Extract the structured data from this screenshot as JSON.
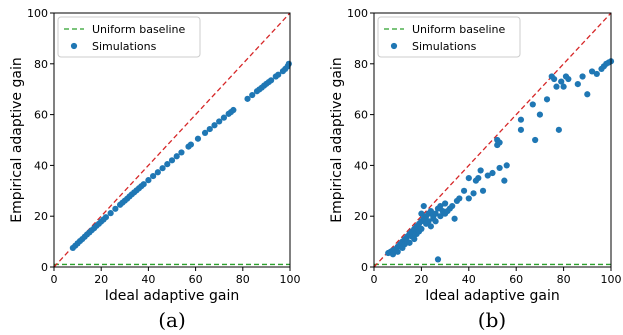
{
  "chart_data": [
    {
      "type": "scatter",
      "xlabel": "Ideal adaptive gain",
      "ylabel": "Empirical adaptive gain",
      "xlim": [
        0,
        100
      ],
      "ylim": [
        0,
        100
      ],
      "xticks": [
        0,
        20,
        40,
        60,
        80,
        100
      ],
      "yticks": [
        0,
        20,
        40,
        60,
        80,
        100
      ],
      "caption": "(a)",
      "legend": {
        "placement": "top-left",
        "entries": [
          "Uniform baseline",
          "Simulations"
        ]
      },
      "diagonal": {
        "style": "red-dashed",
        "from": [
          0,
          0
        ],
        "to": [
          100,
          100
        ]
      },
      "baseline": {
        "name": "Uniform baseline",
        "y": 1,
        "color": "#2ca02c"
      },
      "series": [
        {
          "name": "Simulations",
          "color": "#1f77b4",
          "points": [
            [
              8,
              7.5
            ],
            [
              9,
              8.4
            ],
            [
              10,
              9.3
            ],
            [
              11,
              10.2
            ],
            [
              12,
              11
            ],
            [
              13,
              11.9
            ],
            [
              14,
              12.8
            ],
            [
              15,
              13.6
            ],
            [
              16,
              14.5
            ],
            [
              17,
              15.3
            ],
            [
              18,
              16.2
            ],
            [
              19,
              17
            ],
            [
              20,
              17.9
            ],
            [
              21,
              18.7
            ],
            [
              22,
              19.6
            ],
            [
              24,
              21.2
            ],
            [
              26,
              22.9
            ],
            [
              28,
              24.5
            ],
            [
              29,
              25.3
            ],
            [
              30,
              26.1
            ],
            [
              31,
              26.9
            ],
            [
              32,
              27.8
            ],
            [
              33,
              28.6
            ],
            [
              34,
              29.4
            ],
            [
              35,
              30.2
            ],
            [
              36,
              31
            ],
            [
              37,
              31.8
            ],
            [
              38,
              32.6
            ],
            [
              40,
              34.2
            ],
            [
              42,
              35.8
            ],
            [
              44,
              37.3
            ],
            [
              46,
              38.9
            ],
            [
              48,
              40.5
            ],
            [
              50,
              42
            ],
            [
              52,
              43.6
            ],
            [
              54,
              45.1
            ],
            [
              57,
              47.4
            ],
            [
              58,
              48.2
            ],
            [
              61,
              50.5
            ],
            [
              64,
              52.8
            ],
            [
              66,
              54.3
            ],
            [
              68,
              55.8
            ],
            [
              70,
              57.3
            ],
            [
              72,
              58.8
            ],
            [
              74,
              60.3
            ],
            [
              75,
              61
            ],
            [
              76,
              61.8
            ],
            [
              82,
              66.2
            ],
            [
              84,
              67.7
            ],
            [
              86,
              69.2
            ],
            [
              87,
              69.9
            ],
            [
              88,
              70.6
            ],
            [
              89,
              71.4
            ],
            [
              90,
              72.1
            ],
            [
              91,
              72.8
            ],
            [
              92,
              73.5
            ],
            [
              94,
              75
            ],
            [
              95,
              75.7
            ],
            [
              97,
              77.1
            ],
            [
              98,
              78
            ],
            [
              99,
              79
            ],
            [
              99.5,
              80
            ]
          ]
        }
      ]
    },
    {
      "type": "scatter",
      "xlabel": "Ideal adaptive gain",
      "ylabel": "Empirical adaptive gain",
      "xlim": [
        0,
        100
      ],
      "ylim": [
        0,
        100
      ],
      "xticks": [
        0,
        20,
        40,
        60,
        80,
        100
      ],
      "yticks": [
        0,
        20,
        40,
        60,
        80,
        100
      ],
      "caption": "(b)",
      "legend": {
        "placement": "top-left",
        "entries": [
          "Uniform baseline",
          "Simulations"
        ]
      },
      "diagonal": {
        "style": "red-dashed",
        "from": [
          0,
          0
        ],
        "to": [
          100,
          100
        ]
      },
      "baseline": {
        "name": "Uniform baseline",
        "y": 1,
        "color": "#2ca02c"
      },
      "series": [
        {
          "name": "Simulations",
          "color": "#1f77b4",
          "points": [
            [
              6,
              5.5
            ],
            [
              7,
              6
            ],
            [
              8,
              6.5
            ],
            [
              8,
              5
            ],
            [
              9,
              7
            ],
            [
              10,
              8
            ],
            [
              10,
              6
            ],
            [
              11,
              9
            ],
            [
              12,
              10
            ],
            [
              12,
              7.5
            ],
            [
              13,
              11
            ],
            [
              13,
              9
            ],
            [
              14,
              12
            ],
            [
              14,
              10
            ],
            [
              15,
              13
            ],
            [
              15,
              9.5
            ],
            [
              16,
              12
            ],
            [
              16,
              14
            ],
            [
              17,
              15
            ],
            [
              17,
              11
            ],
            [
              18,
              16
            ],
            [
              18,
              13
            ],
            [
              19,
              17
            ],
            [
              19,
              14
            ],
            [
              20,
              18
            ],
            [
              20,
              15
            ],
            [
              20,
              21
            ],
            [
              21,
              24
            ],
            [
              21,
              19
            ],
            [
              22,
              20
            ],
            [
              22,
              17
            ],
            [
              23,
              18
            ],
            [
              23,
              21
            ],
            [
              24,
              22
            ],
            [
              24,
              16
            ],
            [
              25,
              20
            ],
            [
              25,
              19
            ],
            [
              26,
              21
            ],
            [
              26,
              18
            ],
            [
              27,
              23
            ],
            [
              27,
              3
            ],
            [
              28,
              20
            ],
            [
              28,
              24
            ],
            [
              29,
              22
            ],
            [
              30,
              21
            ],
            [
              30,
              25
            ],
            [
              31,
              22
            ],
            [
              32,
              23
            ],
            [
              33,
              24
            ],
            [
              34,
              19
            ],
            [
              35,
              26
            ],
            [
              36,
              27
            ],
            [
              38,
              30
            ],
            [
              40,
              35
            ],
            [
              40,
              27
            ],
            [
              42,
              29
            ],
            [
              43,
              34
            ],
            [
              44,
              35
            ],
            [
              45,
              38
            ],
            [
              46,
              30
            ],
            [
              48,
              36
            ],
            [
              50,
              37
            ],
            [
              52,
              50
            ],
            [
              52,
              48
            ],
            [
              53,
              49
            ],
            [
              53,
              39
            ],
            [
              55,
              34
            ],
            [
              56,
              40
            ],
            [
              62,
              58
            ],
            [
              62,
              54
            ],
            [
              67,
              64
            ],
            [
              68,
              50
            ],
            [
              70,
              60
            ],
            [
              73,
              66
            ],
            [
              75,
              75
            ],
            [
              76,
              74
            ],
            [
              77,
              71
            ],
            [
              78,
              54
            ],
            [
              79,
              73
            ],
            [
              80,
              71
            ],
            [
              81,
              75
            ],
            [
              82,
              74
            ],
            [
              86,
              72
            ],
            [
              88,
              75
            ],
            [
              90,
              68
            ],
            [
              92,
              77
            ],
            [
              94,
              76
            ],
            [
              96,
              78
            ],
            [
              97,
              79
            ],
            [
              98,
              80
            ],
            [
              99,
              80.5
            ],
            [
              100,
              81
            ]
          ]
        }
      ]
    }
  ]
}
